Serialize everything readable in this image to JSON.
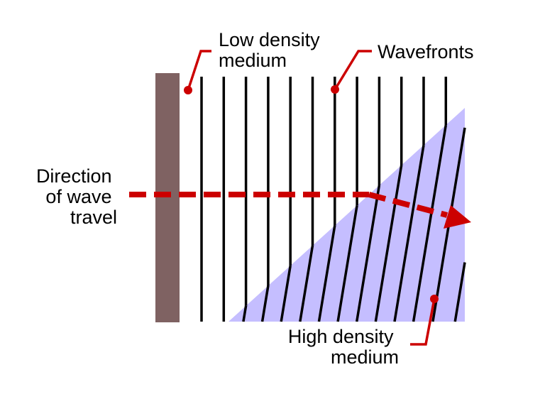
{
  "labels": {
    "low_density": [
      "Low density",
      "medium"
    ],
    "wavefronts": "Wavefronts",
    "direction": [
      "Direction",
      "of wave",
      "travel"
    ],
    "high_density": [
      "High density",
      "medium"
    ]
  },
  "colors": {
    "wall": "#7f6262",
    "high_density_fill": "#c5beff",
    "wavefront": "#000000",
    "callout": "#cc0000",
    "arrow": "#cc0000"
  }
}
